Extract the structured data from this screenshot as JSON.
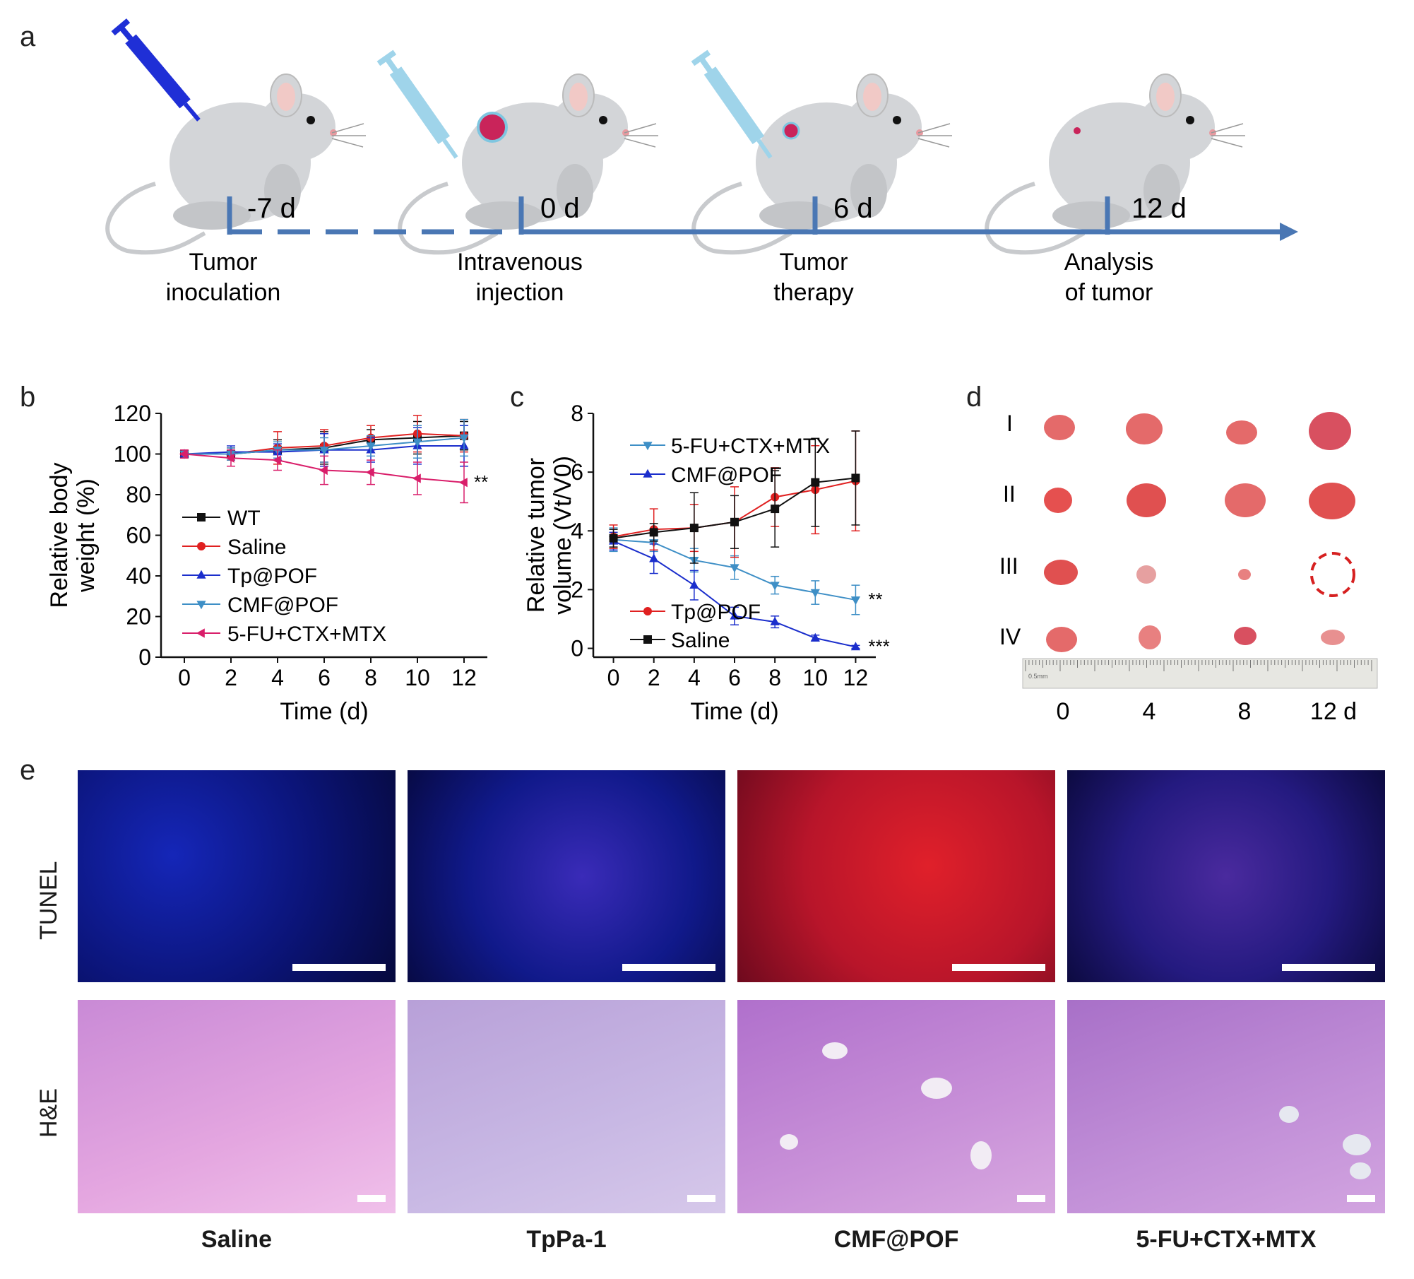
{
  "panels": {
    "a": "a",
    "b": "b",
    "c": "c",
    "d": "d",
    "e": "e"
  },
  "timeline": {
    "days": [
      "-7 d",
      "0 d",
      "6 d",
      "12 d"
    ],
    "steps": [
      [
        "Tumor",
        "inoculation"
      ],
      [
        "Intravenous",
        "injection"
      ],
      [
        "Tumor",
        "therapy"
      ],
      [
        "Analysis",
        "of tumor"
      ]
    ],
    "colors": {
      "axis": "#4a77b4",
      "syringe_dark": "#1f2fd6",
      "syringe_light": "#9fd4ea",
      "mouse": "#d3d5d8",
      "tumor": "#c9245a"
    }
  },
  "chart_data": [
    {
      "type": "line",
      "panel": "b",
      "xlabel": "Time (d)",
      "ylabel": [
        "Relative body",
        "weight (%)"
      ],
      "xlim": [
        -1,
        13
      ],
      "ylim": [
        0,
        120
      ],
      "xticks": [
        0,
        2,
        4,
        6,
        8,
        10,
        12
      ],
      "yticks": [
        0,
        20,
        40,
        60,
        80,
        100,
        120
      ],
      "grid": false,
      "legend_position": "center-left",
      "annotation": "**",
      "series": [
        {
          "name": "WT",
          "color": "#111111",
          "marker": "square",
          "x": [
            0,
            2,
            4,
            6,
            8,
            10,
            12
          ],
          "y": [
            100,
            100,
            102,
            103,
            107,
            108,
            109
          ],
          "err": [
            2,
            3,
            5,
            8,
            5,
            8,
            7
          ]
        },
        {
          "name": "Saline",
          "color": "#e02020",
          "marker": "circle",
          "x": [
            0,
            2,
            4,
            6,
            8,
            10,
            12
          ],
          "y": [
            100,
            100,
            103,
            104,
            108,
            110,
            109
          ],
          "err": [
            2,
            3,
            8,
            8,
            6,
            9,
            8
          ]
        },
        {
          "name": "Tp@POF",
          "color": "#1b2ecc",
          "marker": "triangle-up",
          "x": [
            0,
            2,
            4,
            6,
            8,
            10,
            12
          ],
          "y": [
            100,
            101,
            101,
            102,
            102,
            104,
            104
          ],
          "err": [
            2,
            3,
            4,
            8,
            6,
            9,
            10
          ]
        },
        {
          "name": "CMF@POF",
          "color": "#3e8fc6",
          "marker": "triangle-down",
          "x": [
            0,
            2,
            4,
            6,
            8,
            10,
            12
          ],
          "y": [
            100,
            100,
            102,
            102,
            104,
            106,
            108
          ],
          "err": [
            2,
            3,
            4,
            6,
            5,
            8,
            9
          ]
        },
        {
          "name": "5-FU+CTX+MTX",
          "color": "#d91e6a",
          "marker": "triangle-left",
          "x": [
            0,
            2,
            4,
            6,
            8,
            10,
            12
          ],
          "y": [
            100,
            98,
            97,
            92,
            91,
            88,
            86
          ],
          "err": [
            2,
            4,
            5,
            7,
            6,
            8,
            10
          ]
        }
      ]
    },
    {
      "type": "line",
      "panel": "c",
      "xlabel": "Time (d)",
      "ylabel": [
        "Relative tumor",
        "volume (Vt/V0)"
      ],
      "xlim": [
        -1,
        13
      ],
      "ylim": [
        -0.3,
        8
      ],
      "xticks": [
        0,
        2,
        4,
        6,
        8,
        10,
        12
      ],
      "yticks": [
        0,
        2,
        4,
        6,
        8
      ],
      "grid": false,
      "legend_position": "top-left and bottom-left",
      "annotations": [
        {
          "series": "5-FU+CTX+MTX",
          "text": "**"
        },
        {
          "series": "CMF@POF",
          "text": "***"
        }
      ],
      "series": [
        {
          "name": "5-FU+CTX+MTX",
          "color": "#3e8fc6",
          "marker": "triangle-down",
          "x": [
            0,
            2,
            4,
            6,
            8,
            10,
            12
          ],
          "y": [
            3.7,
            3.6,
            3.0,
            2.75,
            2.15,
            1.9,
            1.65
          ],
          "err": [
            0.4,
            0.3,
            0.4,
            0.4,
            0.3,
            0.4,
            0.5
          ]
        },
        {
          "name": "CMF@POF",
          "color": "#1b2ecc",
          "marker": "triangle-up",
          "x": [
            0,
            2,
            4,
            6,
            8,
            10,
            12
          ],
          "y": [
            3.65,
            3.05,
            2.15,
            1.1,
            0.9,
            0.35,
            0.05
          ],
          "err": [
            0.3,
            0.5,
            0.5,
            0.3,
            0.2,
            0.1,
            0.05
          ]
        },
        {
          "name": "Tp@POF",
          "color": "#e02020",
          "marker": "circle",
          "x": [
            0,
            2,
            4,
            6,
            8,
            10,
            12
          ],
          "y": [
            3.8,
            4.05,
            4.1,
            4.3,
            5.15,
            5.4,
            5.7
          ],
          "err": [
            0.4,
            0.7,
            0.8,
            1.2,
            1.0,
            1.5,
            1.7
          ]
        },
        {
          "name": "Saline",
          "color": "#111111",
          "marker": "square",
          "x": [
            0,
            2,
            4,
            6,
            8,
            10,
            12
          ],
          "y": [
            3.75,
            3.95,
            4.1,
            4.3,
            4.75,
            5.65,
            5.8
          ],
          "err": [
            0.3,
            0.3,
            1.2,
            0.9,
            1.3,
            1.5,
            1.6
          ]
        }
      ]
    }
  ],
  "panel_d": {
    "rows": [
      "I",
      "II",
      "III",
      "IV"
    ],
    "days": [
      "0",
      "4",
      "8",
      "12 d"
    ],
    "ruler_label": "0.5mm"
  },
  "panel_e": {
    "row_labels": [
      "TUNEL",
      "H&E"
    ],
    "groups": [
      "Saline",
      "TpPa-1",
      "CMF@POF",
      "5-FU+CTX+MTX"
    ]
  }
}
